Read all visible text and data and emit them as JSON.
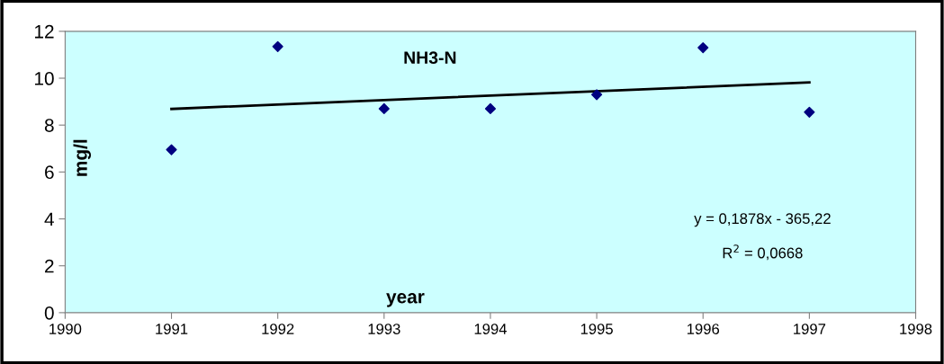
{
  "chart_data": {
    "type": "scatter",
    "title": "NH3-N",
    "xlabel": "year",
    "ylabel": "mg/l",
    "series": [
      {
        "color": "#000080",
        "marker": "diamond",
        "x": [
          1991,
          1992,
          1993,
          1994,
          1995,
          1996,
          1997
        ],
        "values": [
          6.95,
          11.35,
          8.7,
          8.7,
          9.3,
          11.3,
          8.55
        ]
      },
      {
        "type": "line",
        "marker": "none",
        "color": "#000000",
        "x": [
          1991,
          1997
        ],
        "values": [
          8.69,
          9.82
        ]
      }
    ],
    "xlim": [
      1990,
      1998
    ],
    "xticks": [
      1990,
      1991,
      1992,
      1993,
      1994,
      1995,
      1996,
      1997,
      1998
    ],
    "ylim": [
      0,
      12
    ],
    "yticks": [
      0,
      2,
      4,
      6,
      8,
      10,
      12
    ],
    "grid": false,
    "legend": false,
    "annotations": [
      "y = 0,1878x - 365,22",
      "R$^{2}$ = 0,0668"
    ]
  }
}
